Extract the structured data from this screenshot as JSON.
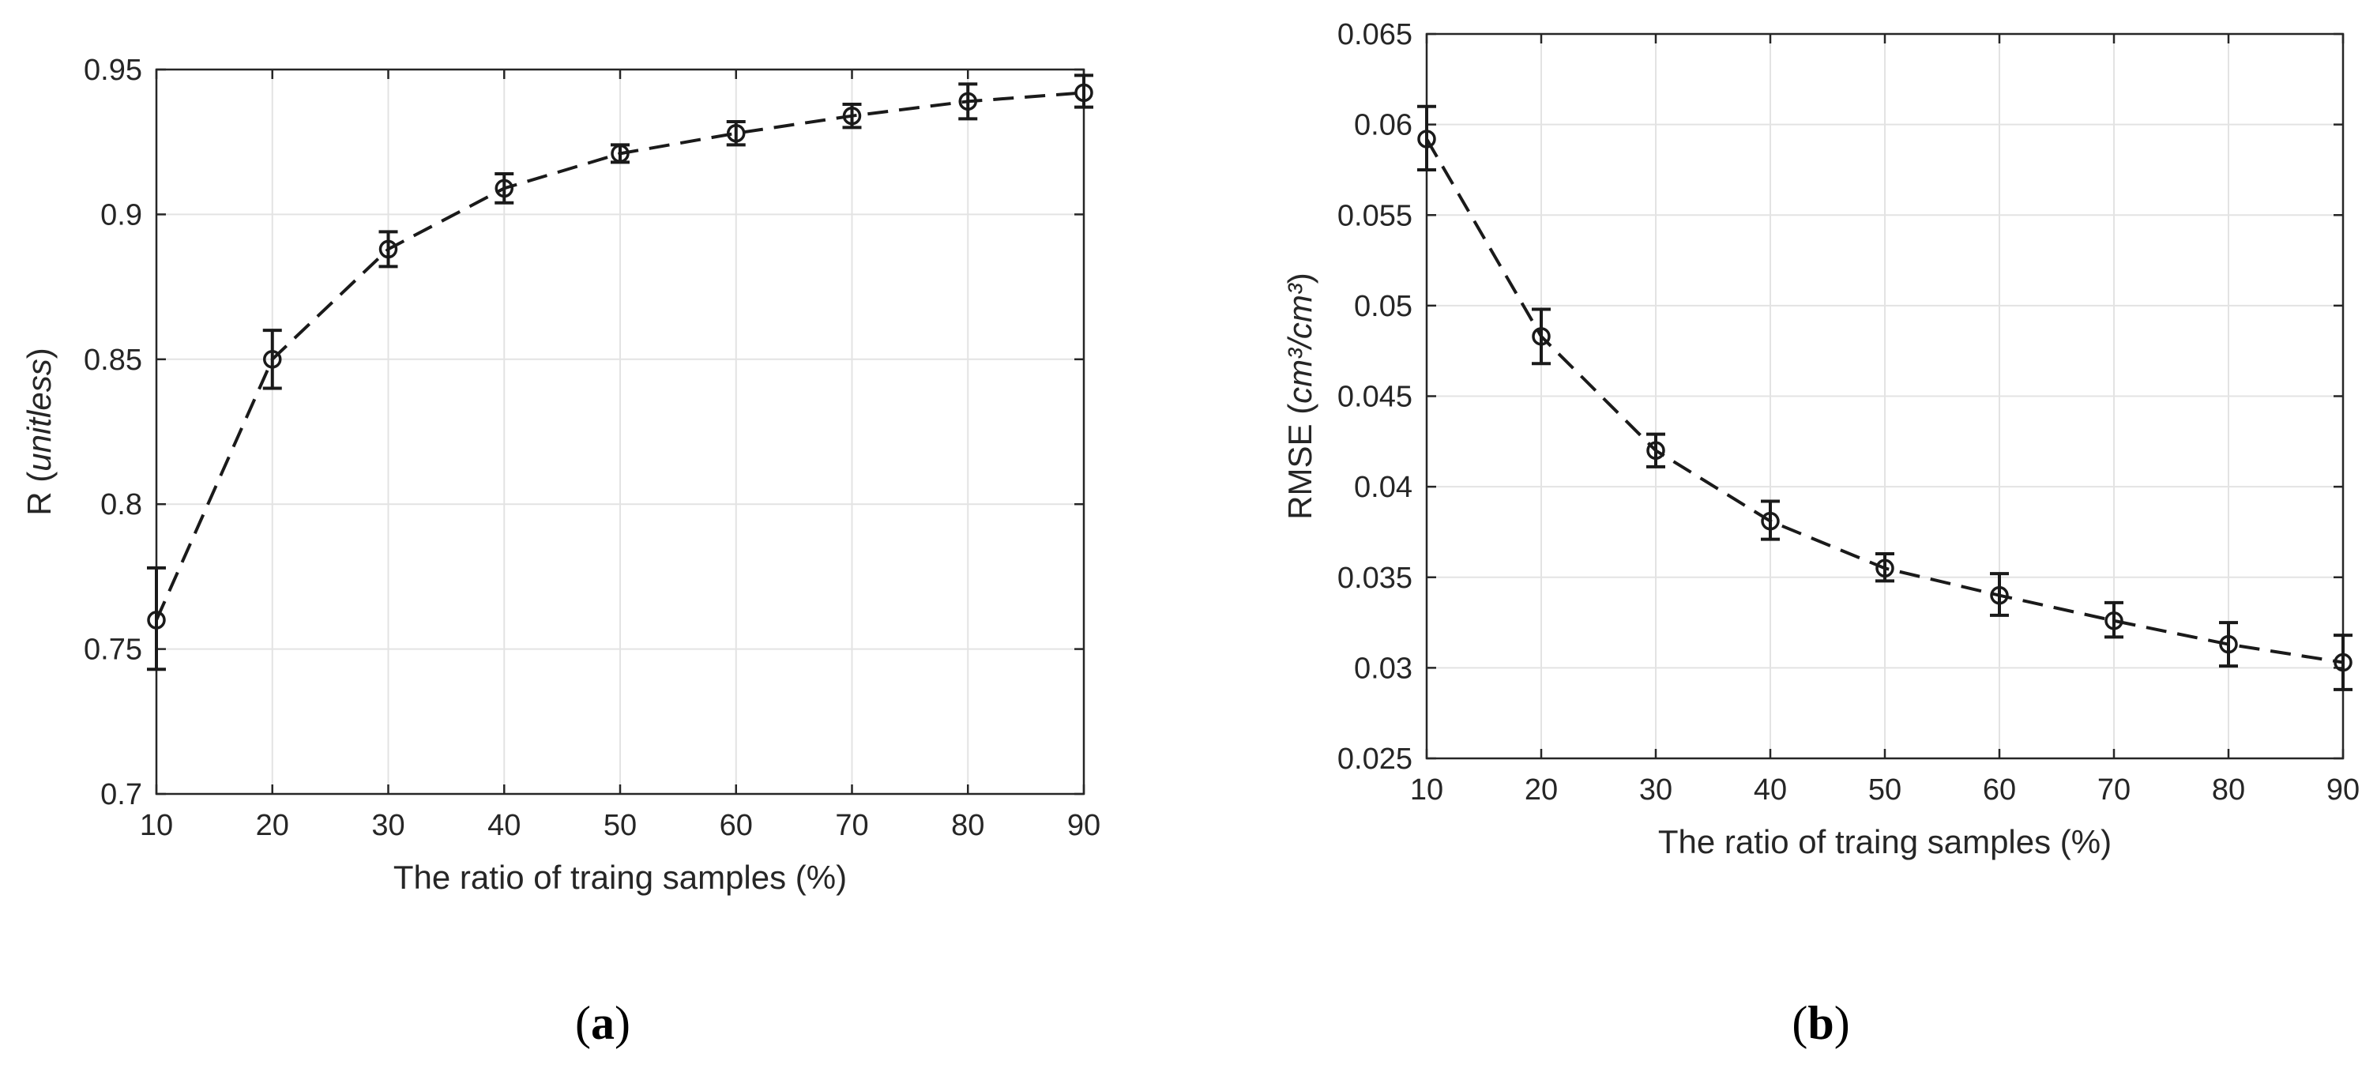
{
  "chart_data": [
    {
      "type": "line",
      "panel_label": "a",
      "x": [
        10,
        20,
        30,
        40,
        50,
        60,
        70,
        80,
        90
      ],
      "xlabel": "The ratio of traing samples (%)",
      "ylabel_main": "R (",
      "ylabel_italic": "unitless",
      "ylabel_end": ")",
      "xlim": [
        10,
        90
      ],
      "ylim": [
        0.7,
        0.95
      ],
      "xticks": [
        "10",
        "20",
        "30",
        "40",
        "50",
        "60",
        "70",
        "80",
        "90"
      ],
      "yticks": [
        "0.7",
        "0.75",
        "0.8",
        "0.85",
        "0.9",
        "0.95"
      ],
      "grid": true,
      "series": [
        {
          "values": [
            0.76,
            0.85,
            0.888,
            0.909,
            0.921,
            0.928,
            0.934,
            0.939,
            0.942
          ],
          "err_low": [
            0.743,
            0.84,
            0.882,
            0.904,
            0.918,
            0.924,
            0.93,
            0.933,
            0.937
          ],
          "err_high": [
            0.778,
            0.86,
            0.894,
            0.914,
            0.924,
            0.932,
            0.938,
            0.945,
            0.948
          ]
        }
      ]
    },
    {
      "type": "line",
      "panel_label": "b",
      "x": [
        10,
        20,
        30,
        40,
        50,
        60,
        70,
        80,
        90
      ],
      "xlabel": "The ratio of traing samples (%)",
      "ylabel_main": "RMSE (",
      "ylabel_italic": "cm³/cm³",
      "ylabel_end": ")",
      "xlim": [
        10,
        90
      ],
      "ylim": [
        0.025,
        0.065
      ],
      "xticks": [
        "10",
        "20",
        "30",
        "40",
        "50",
        "60",
        "70",
        "80",
        "90"
      ],
      "yticks": [
        "0.025",
        "0.03",
        "0.035",
        "0.04",
        "0.045",
        "0.05",
        "0.055",
        "0.06",
        "0.065"
      ],
      "grid": true,
      "series": [
        {
          "values": [
            0.0592,
            0.0483,
            0.042,
            0.0381,
            0.0355,
            0.034,
            0.0326,
            0.0313,
            0.0303
          ],
          "err_low": [
            0.0575,
            0.0468,
            0.0411,
            0.0371,
            0.0348,
            0.0329,
            0.0317,
            0.0301,
            0.0288
          ],
          "err_high": [
            0.061,
            0.0498,
            0.0429,
            0.0392,
            0.0363,
            0.0352,
            0.0336,
            0.0325,
            0.0318
          ]
        }
      ]
    }
  ]
}
